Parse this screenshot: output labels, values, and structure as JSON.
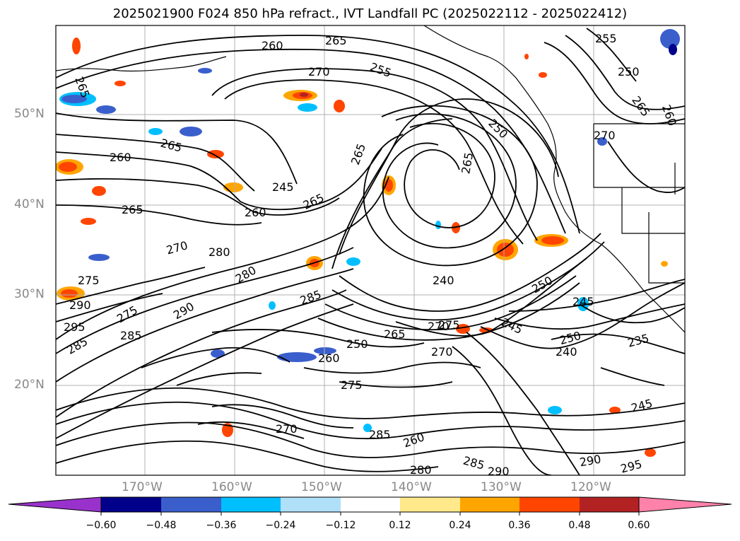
{
  "title": "2025021900 F024 850 hPa refract., IVT Landfall PC (2025022112 - 2025022412)",
  "map": {
    "lat_labels": [
      "50°N",
      "40°N",
      "30°N",
      "20°N"
    ],
    "lon_labels": [
      "170°W",
      "160°W",
      "150°W",
      "140°W",
      "130°W",
      "120°W"
    ],
    "contour_labels": [
      "265",
      "255",
      "260",
      "265",
      "270",
      "255",
      "265",
      "250",
      "250",
      "260",
      "265",
      "270",
      "260",
      "265",
      "265",
      "245",
      "265",
      "260",
      "265",
      "270",
      "280",
      "280",
      "240",
      "275",
      "285",
      "245",
      "290",
      "275",
      "290",
      "285",
      "295",
      "285",
      "270",
      "265",
      "250",
      "275",
      "270",
      "245",
      "250",
      "235",
      "260",
      "240",
      "250",
      "275",
      "285",
      "260",
      "290",
      "295",
      "245",
      "290",
      "280",
      "285",
      "270"
    ]
  },
  "colorbar": {
    "ticks": [
      "−0.60",
      "−0.48",
      "−0.36",
      "−0.24",
      "−0.12",
      "0.12",
      "0.24",
      "0.36",
      "0.48",
      "0.60"
    ],
    "colors": [
      "#9932cc",
      "#00008b",
      "#3a5fcd",
      "#00bfff",
      "#b0e0f8",
      "#ffffff",
      "#ffe98a",
      "#ffa500",
      "#ff4500",
      "#b22222",
      "#ff82ab"
    ]
  }
}
